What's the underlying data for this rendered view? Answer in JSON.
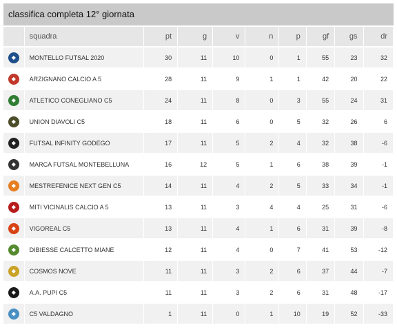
{
  "title": "classifica completa 12° giornata",
  "columns": [
    "squadra",
    "pt",
    "g",
    "v",
    "n",
    "p",
    "gf",
    "gs",
    "dr"
  ],
  "rows": [
    {
      "team": "MONTELLO FUTSAL 2020",
      "pt": "30",
      "g": "11",
      "v": "10",
      "n": "0",
      "p": "1",
      "gf": "55",
      "gs": "23",
      "dr": "32",
      "icon": "montello-logo-icon",
      "color": "#1f4e8c"
    },
    {
      "team": "ARZIGNANO CALCIO A 5",
      "pt": "28",
      "g": "11",
      "v": "9",
      "n": "1",
      "p": "1",
      "gf": "42",
      "gs": "20",
      "dr": "22",
      "icon": "arzignano-logo-icon",
      "color": "#c0392b"
    },
    {
      "team": "ATLETICO CONEGLIANO C5",
      "pt": "24",
      "g": "11",
      "v": "8",
      "n": "0",
      "p": "3",
      "gf": "55",
      "gs": "24",
      "dr": "31",
      "icon": "conegliano-logo-icon",
      "color": "#2e7d32"
    },
    {
      "team": "UNION DIAVOLI C5",
      "pt": "18",
      "g": "11",
      "v": "6",
      "n": "0",
      "p": "5",
      "gf": "32",
      "gs": "26",
      "dr": "6",
      "icon": "diavoli-logo-icon",
      "color": "#4d4d2a"
    },
    {
      "team": "FUTSAL INFINITY GODEGO",
      "pt": "17",
      "g": "11",
      "v": "5",
      "n": "2",
      "p": "4",
      "gf": "32",
      "gs": "38",
      "dr": "-6",
      "icon": "infinity-logo-icon",
      "color": "#222222"
    },
    {
      "team": "MARCA FUTSAL MONTEBELLUNA",
      "pt": "16",
      "g": "12",
      "v": "5",
      "n": "1",
      "p": "6",
      "gf": "38",
      "gs": "39",
      "dr": "-1",
      "icon": "marca-logo-icon",
      "color": "#333333"
    },
    {
      "team": "MESTREFENICE NEXT GEN C5",
      "pt": "14",
      "g": "11",
      "v": "4",
      "n": "2",
      "p": "5",
      "gf": "33",
      "gs": "34",
      "dr": "-1",
      "icon": "mestrefenice-logo-icon",
      "color": "#e67e22"
    },
    {
      "team": "MITI VICINALIS CALCIO A 5",
      "pt": "13",
      "g": "11",
      "v": "3",
      "n": "4",
      "p": "4",
      "gf": "25",
      "gs": "31",
      "dr": "-6",
      "icon": "miti-logo-icon",
      "color": "#b71c1c"
    },
    {
      "team": "VIGOREAL C5",
      "pt": "13",
      "g": "11",
      "v": "4",
      "n": "1",
      "p": "6",
      "gf": "31",
      "gs": "39",
      "dr": "-8",
      "icon": "vigoreal-logo-icon",
      "color": "#d84315"
    },
    {
      "team": "DIBIESSE CALCETTO MIANE",
      "pt": "12",
      "g": "11",
      "v": "4",
      "n": "0",
      "p": "7",
      "gf": "41",
      "gs": "53",
      "dr": "-12",
      "icon": "dibiesse-logo-icon",
      "color": "#558b2f"
    },
    {
      "team": "COSMOS NOVE",
      "pt": "11",
      "g": "11",
      "v": "3",
      "n": "2",
      "p": "6",
      "gf": "37",
      "gs": "44",
      "dr": "-7",
      "icon": "cosmos-logo-icon",
      "color": "#c9a227"
    },
    {
      "team": "A.A. PUPI C5",
      "pt": "11",
      "g": "11",
      "v": "3",
      "n": "2",
      "p": "6",
      "gf": "31",
      "gs": "48",
      "dr": "-17",
      "icon": "pupi-logo-icon",
      "color": "#1a1a1a"
    },
    {
      "team": "C5 VALDAGNO",
      "pt": "1",
      "g": "11",
      "v": "0",
      "n": "1",
      "p": "10",
      "gf": "19",
      "gs": "52",
      "dr": "-33",
      "icon": "valdagno-logo-icon",
      "color": "#4a90c2"
    }
  ]
}
